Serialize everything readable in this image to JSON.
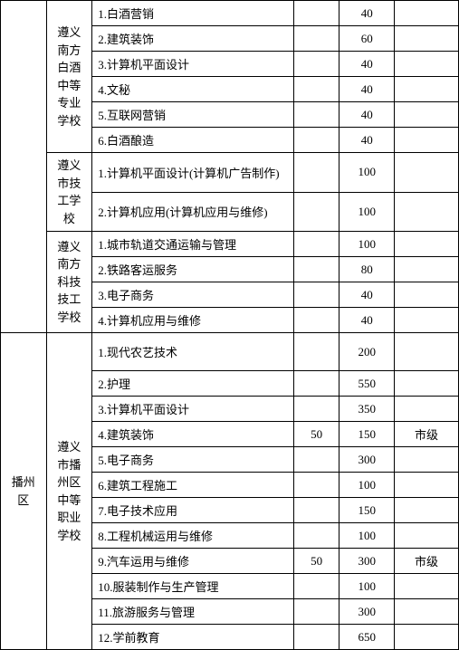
{
  "districts": [
    {
      "name": "",
      "spanRows": 12
    },
    {
      "name": "播州区",
      "spanRows": 12
    }
  ],
  "schools": [
    {
      "name": "遵义南方白酒中等专业学校",
      "majors": [
        {
          "label": "1.白酒营销",
          "a": "",
          "b": "40",
          "c": ""
        },
        {
          "label": "2.建筑装饰",
          "a": "",
          "b": "60",
          "c": ""
        },
        {
          "label": "3.计算机平面设计",
          "a": "",
          "b": "40",
          "c": ""
        },
        {
          "label": "4.文秘",
          "a": "",
          "b": "40",
          "c": ""
        },
        {
          "label": "5.互联网营销",
          "a": "",
          "b": "40",
          "c": ""
        },
        {
          "label": "6.白酒酿造",
          "a": "",
          "b": "40",
          "c": ""
        }
      ]
    },
    {
      "name": "遵义市技工学校",
      "majors": [
        {
          "label": "1.计算机平面设计(计算机广告制作)",
          "a": "",
          "b": "100",
          "c": ""
        },
        {
          "label": "2.计算机应用(计算机应用与维修)",
          "a": "",
          "b": "100",
          "c": ""
        }
      ]
    },
    {
      "name": "遵义南方科技技工学校",
      "majors": [
        {
          "label": "1.城市轨道交通运输与管理",
          "a": "",
          "b": "100",
          "c": ""
        },
        {
          "label": "2.铁路客运服务",
          "a": "",
          "b": "80",
          "c": ""
        },
        {
          "label": "3.电子商务",
          "a": "",
          "b": "40",
          "c": ""
        },
        {
          "label": "4.计算机应用与维修",
          "a": "",
          "b": "40",
          "c": ""
        }
      ]
    },
    {
      "name": "遵义市播州区中等职业学校",
      "majors": [
        {
          "label": "1.现代农艺技术",
          "a": "",
          "b": "200",
          "c": "",
          "tall": true
        },
        {
          "label": "2.护理",
          "a": "",
          "b": "550",
          "c": ""
        },
        {
          "label": "3.计算机平面设计",
          "a": "",
          "b": "350",
          "c": ""
        },
        {
          "label": "4.建筑装饰",
          "a": "50",
          "b": "150",
          "c": "市级"
        },
        {
          "label": "5.电子商务",
          "a": "",
          "b": "300",
          "c": ""
        },
        {
          "label": "6.建筑工程施工",
          "a": "",
          "b": "100",
          "c": ""
        },
        {
          "label": "7.电子技术应用",
          "a": "",
          "b": "150",
          "c": ""
        },
        {
          "label": "8.工程机械运用与维修",
          "a": "",
          "b": "100",
          "c": ""
        },
        {
          "label": "9.汽车运用与维修",
          "a": "50",
          "b": "300",
          "c": "市级"
        },
        {
          "label": "10.服装制作与生产管理",
          "a": "",
          "b": "100",
          "c": ""
        },
        {
          "label": "11.旅游服务与管理",
          "a": "",
          "b": "300",
          "c": ""
        },
        {
          "label": "12.学前教育",
          "a": "",
          "b": "650",
          "c": ""
        }
      ]
    }
  ]
}
